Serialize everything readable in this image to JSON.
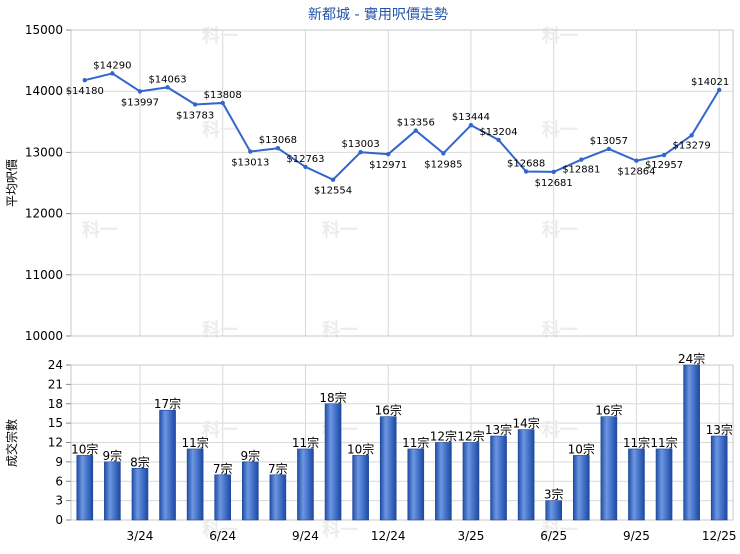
{
  "chart_data": [
    {
      "type": "line",
      "title": "新都城 - 實用呎價走勢",
      "ylabel": "平均呎價",
      "ylim": [
        10000,
        15000
      ],
      "yticks": [
        10000,
        11000,
        12000,
        13000,
        14000,
        15000
      ],
      "grid": true,
      "series": [
        {
          "color": "#3366cc",
          "values": [
            14180,
            14290,
            13997,
            14063,
            13783,
            13808,
            13013,
            13068,
            12763,
            12554,
            13003,
            12971,
            13356,
            12985,
            13444,
            13204,
            12688,
            12681,
            12881,
            13057,
            12864,
            12957,
            13279,
            14021
          ]
        }
      ]
    },
    {
      "type": "bar",
      "ylabel": "成交宗數",
      "ylim": [
        0,
        24
      ],
      "yticks": [
        0,
        3,
        6,
        9,
        12,
        15,
        18,
        21,
        24
      ],
      "grid": true,
      "categories": [
        "",
        "",
        "3/24",
        "",
        "",
        "6/24",
        "",
        "",
        "9/24",
        "",
        "",
        "12/24",
        "",
        "",
        "3/25",
        "",
        "",
        "6/25",
        "",
        "",
        "9/25",
        "",
        "",
        "12/25"
      ],
      "series": [
        {
          "color": "#3a6bc4",
          "values": [
            10,
            9,
            8,
            17,
            11,
            7,
            9,
            7,
            11,
            18,
            10,
            16,
            11,
            12,
            12,
            13,
            14,
            3,
            10,
            16,
            11,
            11,
            24,
            13
          ],
          "labels": [
            "10宗",
            "9宗",
            "8宗",
            "17宗",
            "11宗",
            "7宗",
            "9宗",
            "7宗",
            "11宗",
            "18宗",
            "10宗",
            "16宗",
            "11宗",
            "12宗",
            "12宗",
            "13宗",
            "14宗",
            "3宗",
            "10宗",
            "16宗",
            "11宗",
            "11宗",
            "24宗",
            "13宗"
          ]
        }
      ]
    }
  ],
  "watermark": "科一"
}
